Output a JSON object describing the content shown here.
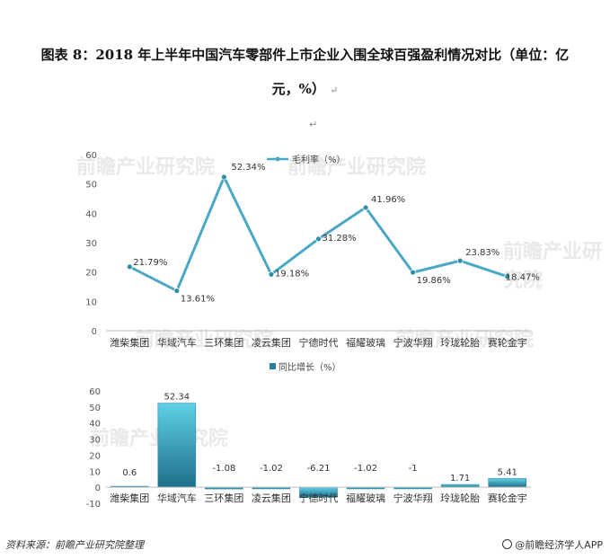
{
  "title": {
    "line1": "图表 8：2018 年上半年中国汽车零部件上市企业入围全球百强盈利情况对比（单位：亿",
    "line2": "元，%）",
    "return_mark": "↵"
  },
  "watermark": "前瞻产业研究院",
  "footer": {
    "source": "资料来源：前瞻产业研究院整理",
    "brand": "@前瞻经济学人APP"
  },
  "colors": {
    "line": "#4aa8c4",
    "bar_top": "#5fd0e6",
    "bar_bottom": "#1f6f8a",
    "axis": "#bbbbbb",
    "text": "#333333"
  },
  "chart_data": [
    {
      "type": "line",
      "legend": "毛利率（%）",
      "categories": [
        "潍柴集团",
        "华域汽车",
        "三环集团",
        "凌云集团",
        "宁德时代",
        "福耀玻璃",
        "宁波华翔",
        "玲珑轮胎",
        "赛轮金宇"
      ],
      "values": [
        21.79,
        13.61,
        52.34,
        19.18,
        31.28,
        41.96,
        19.86,
        23.83,
        18.47
      ],
      "labels": [
        "21.79%",
        "13.61%",
        "52.34%",
        "19.18%",
        "31.28%",
        "41.96%",
        "19.86%",
        "23.83%",
        "18.47%"
      ],
      "y_ticks": [
        "0",
        "10",
        "20",
        "30",
        "40",
        "50",
        "60"
      ],
      "ylim": [
        0,
        60
      ],
      "legend_position": "top-center"
    },
    {
      "type": "bar",
      "legend": "同比增长（%）",
      "categories": [
        "潍柴集团",
        "华域汽车",
        "三环集团",
        "凌云集团",
        "宁德时代",
        "福耀玻璃",
        "宁波华翔",
        "玲珑轮胎",
        "赛轮金宇"
      ],
      "values": [
        0.6,
        52.34,
        -1.08,
        -1.02,
        -6.21,
        -1.02,
        -1,
        1.71,
        5.41
      ],
      "labels": [
        "0.6",
        "52.34",
        "-1.08",
        "-1.02",
        "-6.21",
        "-1.02",
        "-1",
        "1.71",
        "5.41"
      ],
      "y_ticks": [
        "-10",
        "0",
        "10",
        "20",
        "30",
        "40",
        "50",
        "60"
      ],
      "ylim": [
        -10,
        60
      ],
      "legend_position": "top-center"
    }
  ]
}
